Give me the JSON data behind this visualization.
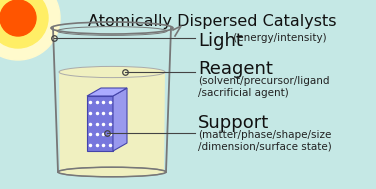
{
  "title": "Atomically Dispersed Catalysts",
  "title_fontsize": 11.5,
  "background_color": "#c5e8e5",
  "sun_orange": "#ff5500",
  "sun_yellow": "#ffee66",
  "sun_pale": "#fffacc",
  "beaker_line_color": "#777777",
  "liquid_fill": "#f0f0c0",
  "cube_front": "#7777dd",
  "cube_side": "#9999ee",
  "cube_top": "#aaaaff",
  "cube_edge": "#4444aa",
  "dot_color": "#ffffff",
  "line_color": "#444444",
  "text_dark": "#111111",
  "text_sub": "#222222",
  "light_title": "Light",
  "light_sub": " (energy/intensity)",
  "reagent_title": "Reagent",
  "reagent_sub": "(solvent/precursor/ligand\n/sacrificial agent)",
  "support_title": "Support",
  "support_sub": "(matter/phase/shape/size\n/dimension/surface state)"
}
